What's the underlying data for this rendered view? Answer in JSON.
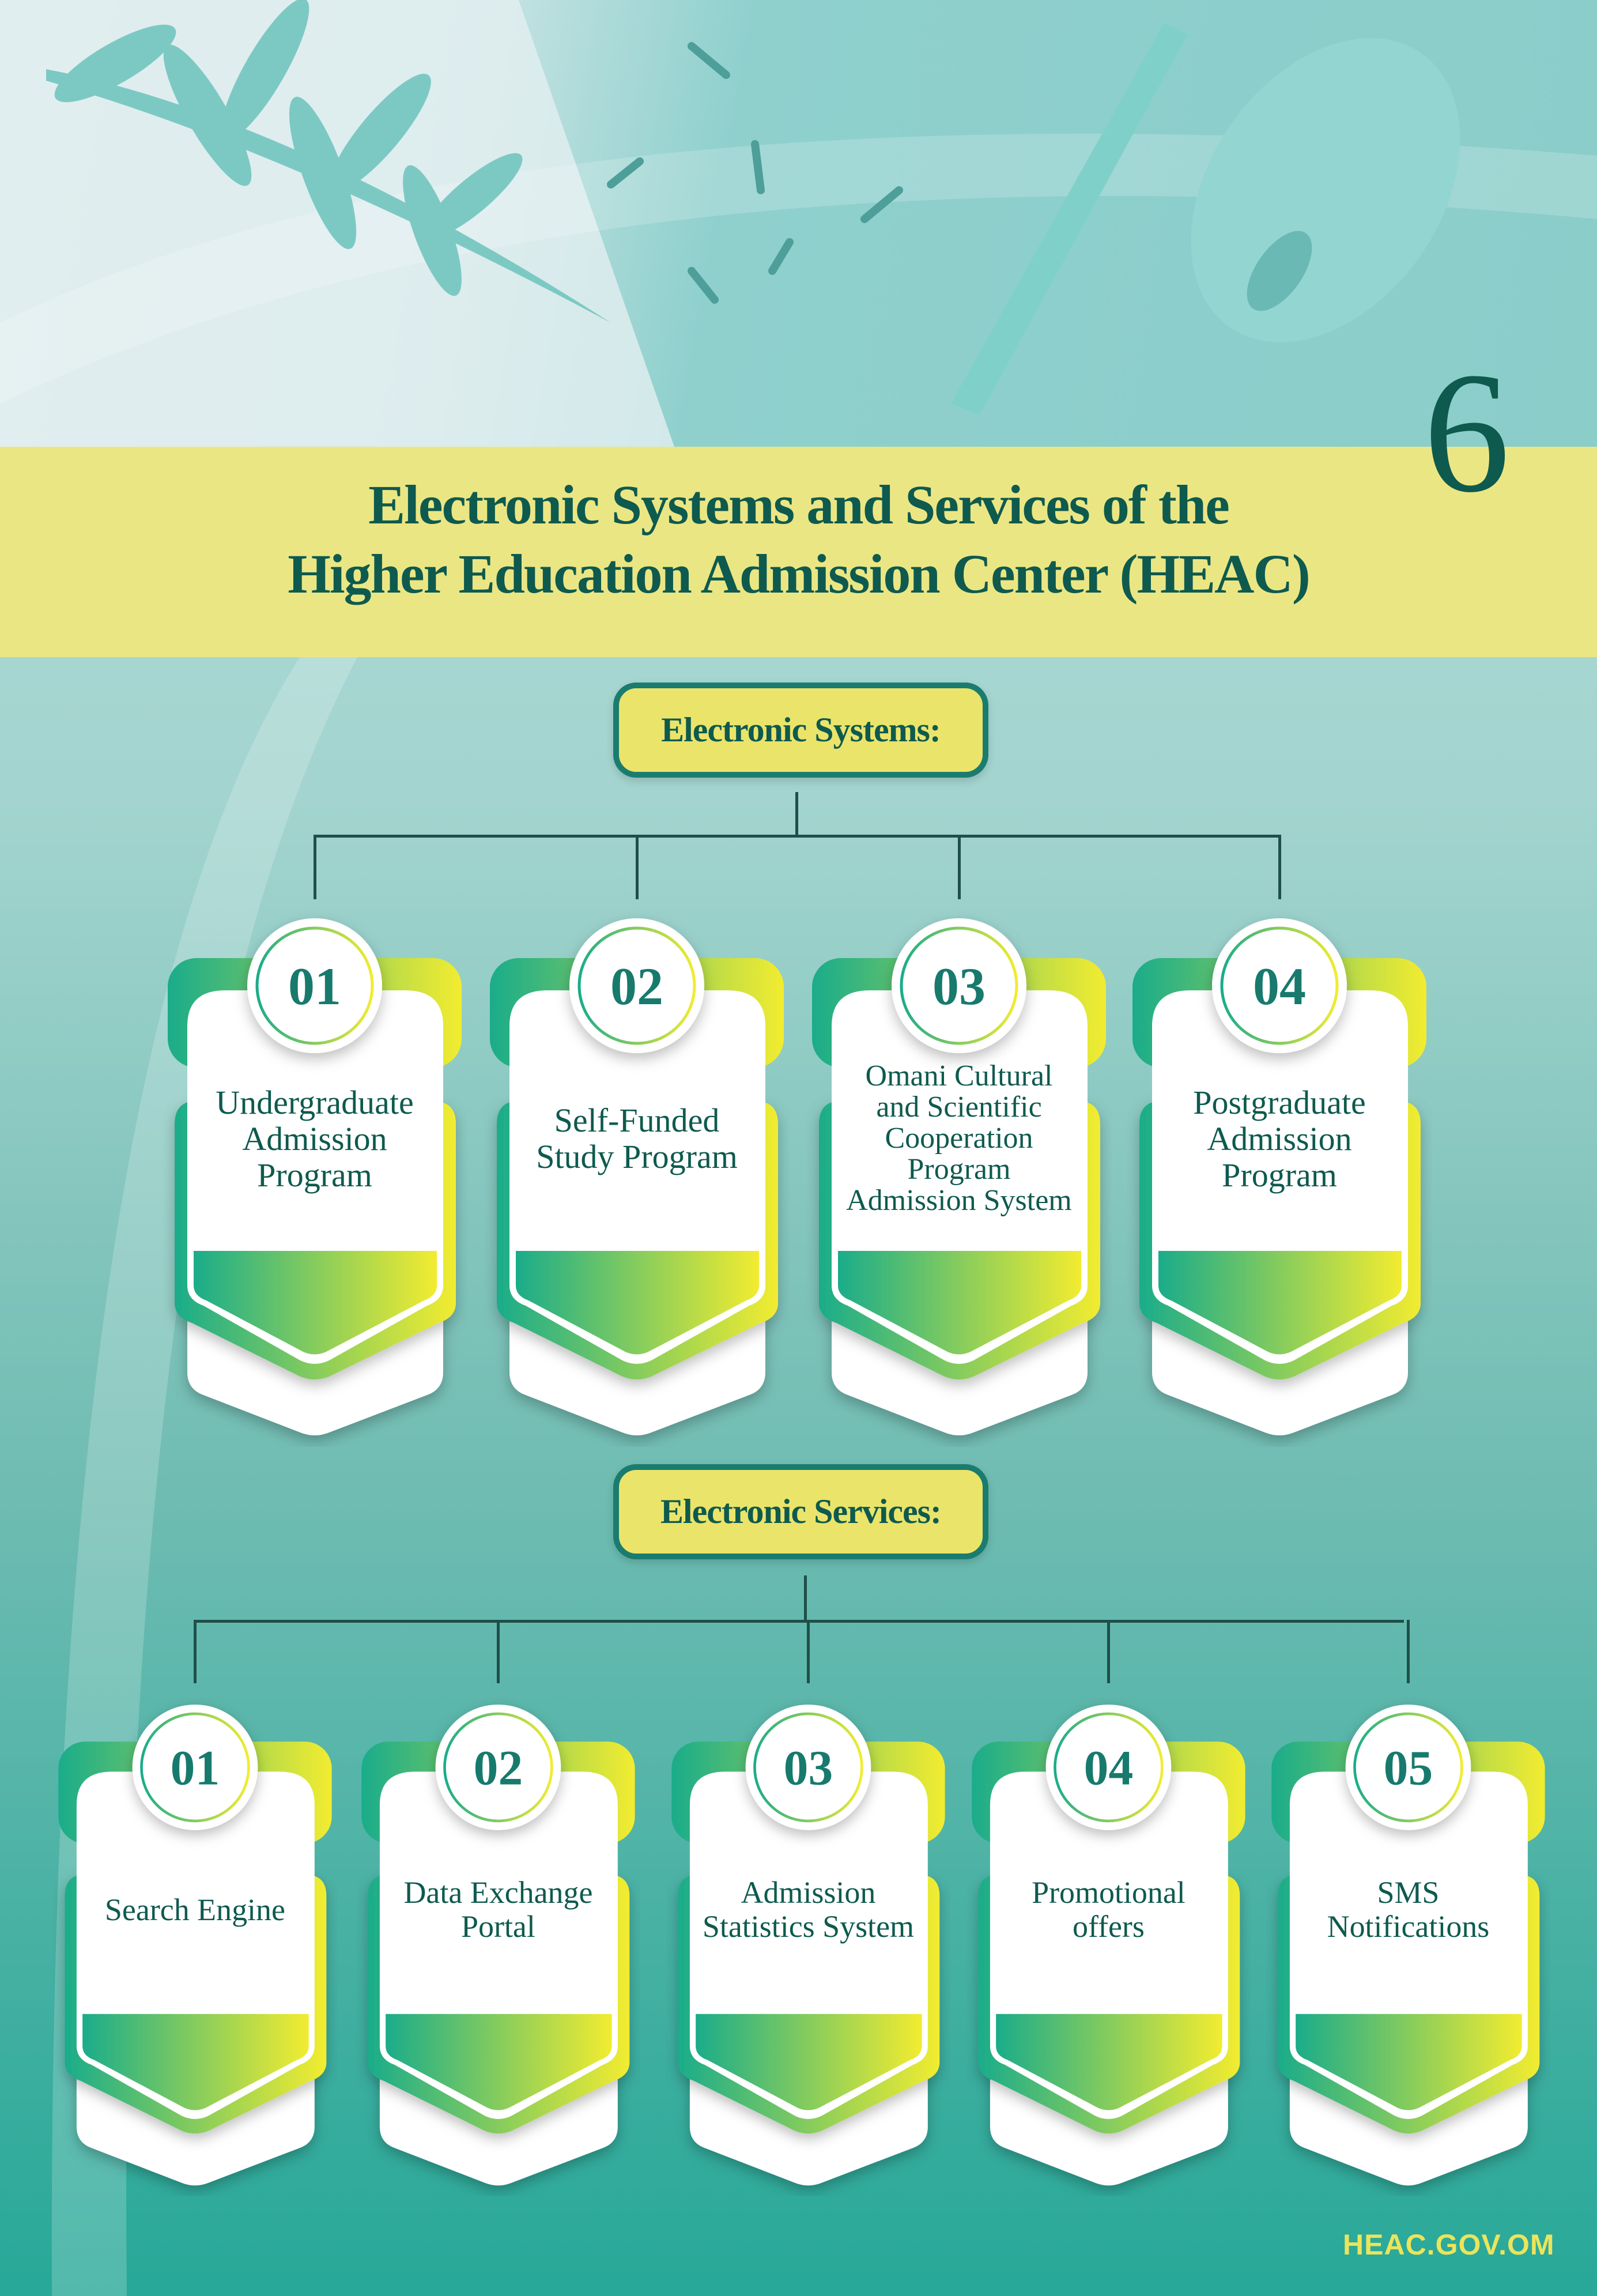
{
  "page_number": "6",
  "title": {
    "line1": "Electronic Systems and Services of  the",
    "line2": "Higher Education Admission Center (HEAC)"
  },
  "systems": {
    "heading": "Electronic Systems:",
    "items": [
      {
        "number": "01",
        "label": "Undergraduate Admission Program"
      },
      {
        "number": "02",
        "label": "Self-Funded Study Program"
      },
      {
        "number": "03",
        "label": "Omani Cultural and Scientific Cooperation Program Admission System"
      },
      {
        "number": "04",
        "label": "Postgraduate Admission Program"
      }
    ]
  },
  "services": {
    "heading": "Electronic Services:",
    "items": [
      {
        "number": "01",
        "label": "Search Engine"
      },
      {
        "number": "02",
        "label": "Data Exchange Portal"
      },
      {
        "number": "03",
        "label": "Admission Statistics System"
      },
      {
        "number": "04",
        "label": "Promotional offers"
      },
      {
        "number": "05",
        "label": "SMS Notifications"
      }
    ]
  },
  "footer": "HEAC.GOV.OM",
  "colors": {
    "dark_teal": "#0e5a4e",
    "yellow_band": "#ebe684",
    "gradient_green": "#1fae8a",
    "gradient_yellow": "#f2ec30",
    "footer_text": "#ece45a"
  }
}
